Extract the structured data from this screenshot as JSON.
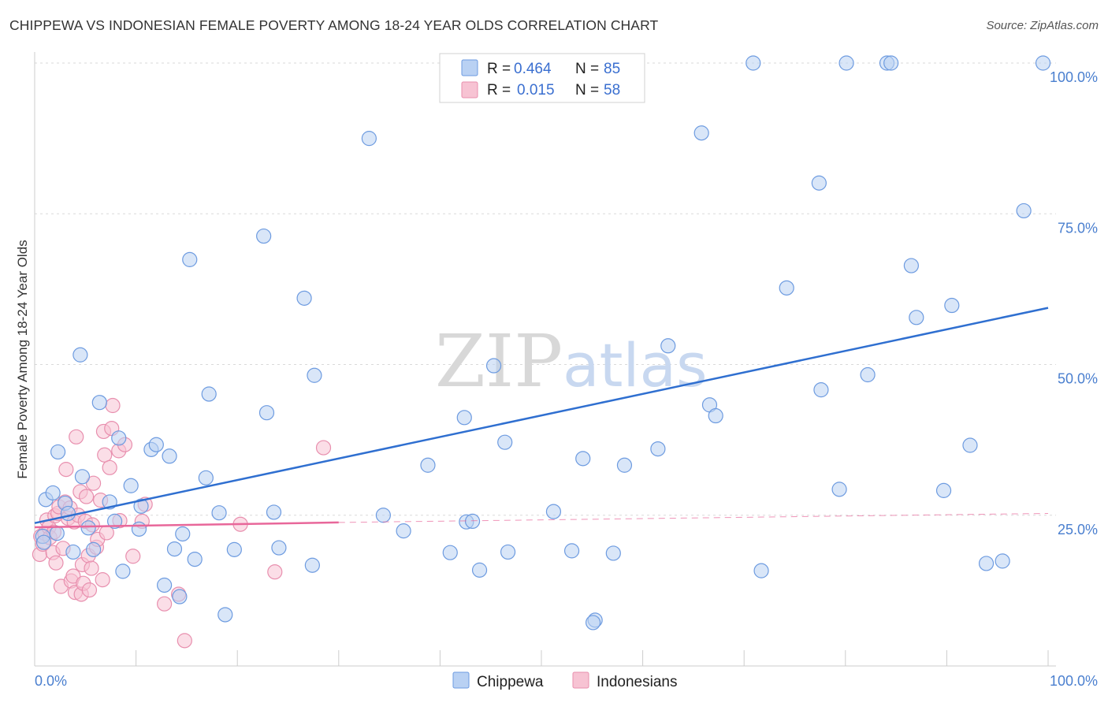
{
  "title": "CHIPPEWA VS INDONESIAN FEMALE POVERTY AMONG 18-24 YEAR OLDS CORRELATION CHART",
  "source": "Source: ZipAtlas.com",
  "watermark": {
    "zip": "ZIP",
    "atlas": "atlas"
  },
  "colors": {
    "chippewa_fill": "#b9d1f3",
    "chippewa_stroke": "#6d9be0",
    "chippewa_line": "#2f6fd0",
    "indonesian_fill": "#f7c3d3",
    "indonesian_stroke": "#e88fae",
    "indonesian_line": "#e8679a",
    "grid": "#d9d9d9",
    "tick_text": "#4a7fcf"
  },
  "legend": {
    "r_label": "R = ",
    "n_label": "N = ",
    "series": [
      {
        "r": "0.464",
        "n": "85"
      },
      {
        "r": "0.015",
        "n": "58"
      }
    ]
  },
  "chart_data": {
    "type": "scatter",
    "xlabel": "",
    "ylabel": "Female Poverty Among 18-24 Year Olds",
    "xlim": [
      0,
      100
    ],
    "ylim": [
      0,
      100
    ],
    "x_tick_labels": [
      "0.0%",
      "100.0%"
    ],
    "y_ticks": [
      {
        "value": 25,
        "label": "25.0%"
      },
      {
        "value": 50,
        "label": "50.0%"
      },
      {
        "value": 75,
        "label": "75.0%"
      },
      {
        "value": 100,
        "label": "100.0%"
      }
    ],
    "grid": true,
    "legend_position": "top-center",
    "series": [
      {
        "name": "Chippewa",
        "trend": {
          "x": [
            0,
            100
          ],
          "y": [
            23.7,
            59.4
          ],
          "dashed_extension": false
        },
        "points": [
          [
            1.1,
            27.6
          ],
          [
            1.8,
            28.7
          ],
          [
            2.3,
            35.5
          ],
          [
            3.0,
            27.0
          ],
          [
            2.2,
            22.0
          ],
          [
            0.8,
            21.5
          ],
          [
            0.9,
            20.5
          ],
          [
            3.3,
            25.3
          ],
          [
            3.8,
            18.9
          ],
          [
            4.5,
            51.6
          ],
          [
            4.7,
            31.4
          ],
          [
            5.3,
            22.9
          ],
          [
            5.8,
            19.3
          ],
          [
            6.4,
            43.7
          ],
          [
            7.4,
            27.2
          ],
          [
            7.9,
            24.0
          ],
          [
            8.3,
            37.8
          ],
          [
            8.7,
            15.7
          ],
          [
            9.5,
            29.9
          ],
          [
            10.3,
            22.7
          ],
          [
            10.5,
            26.5
          ],
          [
            11.5,
            35.9
          ],
          [
            12.0,
            36.7
          ],
          [
            12.8,
            13.4
          ],
          [
            13.3,
            34.8
          ],
          [
            13.8,
            19.4
          ],
          [
            14.3,
            11.5
          ],
          [
            14.6,
            21.9
          ],
          [
            15.3,
            67.4
          ],
          [
            15.8,
            17.7
          ],
          [
            16.9,
            31.2
          ],
          [
            17.2,
            45.1
          ],
          [
            18.2,
            25.4
          ],
          [
            18.8,
            8.5
          ],
          [
            19.7,
            19.3
          ],
          [
            22.6,
            71.3
          ],
          [
            22.9,
            42.0
          ],
          [
            23.6,
            25.5
          ],
          [
            24.1,
            19.6
          ],
          [
            26.6,
            61.0
          ],
          [
            27.4,
            16.7
          ],
          [
            27.6,
            48.2
          ],
          [
            33.0,
            87.5
          ],
          [
            34.4,
            25.0
          ],
          [
            36.4,
            22.4
          ],
          [
            38.8,
            33.3
          ],
          [
            41.0,
            18.8
          ],
          [
            42.4,
            41.2
          ],
          [
            42.6,
            23.9
          ],
          [
            43.2,
            24.0
          ],
          [
            43.9,
            15.9
          ],
          [
            45.3,
            49.8
          ],
          [
            46.4,
            37.1
          ],
          [
            46.7,
            18.9
          ],
          [
            51.2,
            25.6
          ],
          [
            53.0,
            19.1
          ],
          [
            54.1,
            34.4
          ],
          [
            55.3,
            7.6
          ],
          [
            57.1,
            18.7
          ],
          [
            58.2,
            33.3
          ],
          [
            61.5,
            36.0
          ],
          [
            62.5,
            53.1
          ],
          [
            65.8,
            88.4
          ],
          [
            66.6,
            43.3
          ],
          [
            67.2,
            41.5
          ],
          [
            70.9,
            100.0
          ],
          [
            71.7,
            15.8
          ],
          [
            74.2,
            62.7
          ],
          [
            77.4,
            80.1
          ],
          [
            77.6,
            45.8
          ],
          [
            79.4,
            29.3
          ],
          [
            80.1,
            100.0
          ],
          [
            82.2,
            48.3
          ],
          [
            84.1,
            100.0
          ],
          [
            84.5,
            100.0
          ],
          [
            86.5,
            66.4
          ],
          [
            87.0,
            57.8
          ],
          [
            89.7,
            29.1
          ],
          [
            90.5,
            59.8
          ],
          [
            92.3,
            36.6
          ],
          [
            93.9,
            17.0
          ],
          [
            95.5,
            17.4
          ],
          [
            97.6,
            75.5
          ],
          [
            99.5,
            100.0
          ],
          [
            55.1,
            7.2
          ]
        ]
      },
      {
        "name": "Indonesians",
        "trend": {
          "x": [
            0,
            30
          ],
          "y": [
            23.0,
            23.8
          ],
          "dashed_extension": true,
          "extension_to": [
            100,
            25.3
          ]
        },
        "points": [
          [
            0.5,
            18.5
          ],
          [
            0.6,
            21.5
          ],
          [
            0.8,
            20.2
          ],
          [
            1.0,
            22.0
          ],
          [
            1.2,
            24.2
          ],
          [
            1.4,
            23.0
          ],
          [
            1.5,
            21.3
          ],
          [
            1.8,
            18.8
          ],
          [
            1.9,
            22.2
          ],
          [
            2.0,
            24.9
          ],
          [
            2.1,
            17.1
          ],
          [
            2.3,
            25.3
          ],
          [
            2.4,
            26.4
          ],
          [
            2.6,
            13.2
          ],
          [
            2.8,
            19.5
          ],
          [
            3.0,
            27.2
          ],
          [
            3.1,
            32.6
          ],
          [
            3.3,
            24.5
          ],
          [
            3.5,
            26.2
          ],
          [
            3.6,
            14.1
          ],
          [
            3.8,
            14.9
          ],
          [
            3.9,
            23.9
          ],
          [
            4.0,
            12.2
          ],
          [
            4.1,
            38.0
          ],
          [
            4.3,
            25.0
          ],
          [
            4.5,
            28.9
          ],
          [
            4.6,
            11.9
          ],
          [
            4.7,
            16.8
          ],
          [
            4.8,
            13.7
          ],
          [
            5.0,
            24.0
          ],
          [
            5.1,
            28.1
          ],
          [
            5.3,
            18.3
          ],
          [
            5.4,
            12.6
          ],
          [
            5.6,
            16.2
          ],
          [
            5.7,
            23.4
          ],
          [
            5.8,
            30.3
          ],
          [
            6.1,
            19.7
          ],
          [
            6.2,
            21.0
          ],
          [
            6.5,
            27.5
          ],
          [
            6.7,
            14.3
          ],
          [
            6.8,
            38.9
          ],
          [
            6.9,
            35.0
          ],
          [
            7.1,
            22.1
          ],
          [
            7.4,
            32.9
          ],
          [
            7.6,
            39.4
          ],
          [
            7.7,
            43.2
          ],
          [
            8.3,
            35.7
          ],
          [
            8.4,
            24.1
          ],
          [
            8.9,
            36.7
          ],
          [
            9.7,
            18.2
          ],
          [
            10.6,
            24.0
          ],
          [
            10.9,
            26.8
          ],
          [
            12.8,
            10.3
          ],
          [
            14.2,
            11.9
          ],
          [
            14.8,
            4.2
          ],
          [
            20.3,
            23.5
          ],
          [
            23.7,
            15.6
          ],
          [
            28.5,
            36.2
          ]
        ]
      }
    ]
  }
}
